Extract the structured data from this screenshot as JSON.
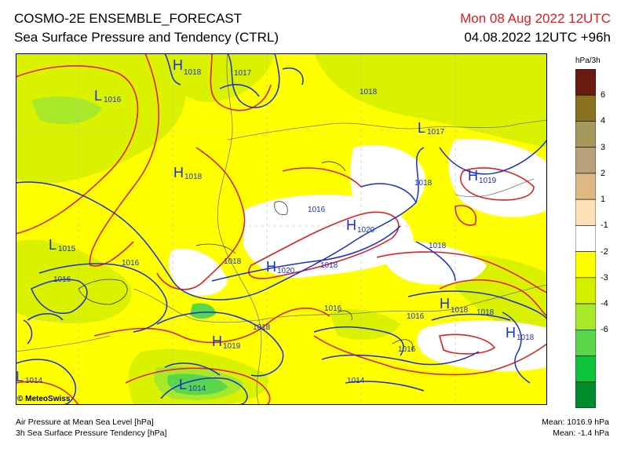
{
  "header": {
    "title": "COSMO-2E ENSEMBLE_FORECAST",
    "subtitle": "Sea Surface Pressure and Tendency (CTRL)",
    "valid_time": "Mon 08 Aug 2022 12UTC",
    "run_time": "04.08.2022 12UTC +96h"
  },
  "legend": {
    "unit": "hPa/3h",
    "ticks": [
      "6",
      "4",
      "3",
      "2",
      "1",
      "-1",
      "-2",
      "-3",
      "-4",
      "-6"
    ],
    "bands": [
      {
        "color": "#6b1a10"
      },
      {
        "color": "#8a7220"
      },
      {
        "color": "#a59a5c"
      },
      {
        "color": "#b8a07a"
      },
      {
        "color": "#ddb882"
      },
      {
        "color": "#fde0b5"
      },
      {
        "color": "#ffffff"
      },
      {
        "color": "#ffff00"
      },
      {
        "color": "#d4f000"
      },
      {
        "color": "#a8e82a"
      },
      {
        "color": "#5ad64a"
      },
      {
        "color": "#0ec43c"
      },
      {
        "color": "#008c2c"
      }
    ]
  },
  "map": {
    "lows": [
      {
        "text": "L",
        "sub": "1016"
      },
      {
        "text": "L",
        "sub": "1015"
      },
      {
        "text": "L",
        "sub": "1014"
      },
      {
        "text": "L",
        "sub": "1014"
      },
      {
        "text": "L",
        "sub": "1017"
      }
    ],
    "highs": [
      {
        "text": "H",
        "sub": "1018"
      },
      {
        "text": "H",
        "sub": "1018"
      },
      {
        "text": "H",
        "sub": "1020"
      },
      {
        "text": "H",
        "sub": "1020"
      },
      {
        "text": "H",
        "sub": "1019"
      },
      {
        "text": "H",
        "sub": "1018"
      },
      {
        "text": "H",
        "sub": "1018"
      },
      {
        "text": "H",
        "sub": "1019"
      }
    ],
    "isobar_labels": [
      "1017",
      "1018",
      "1018",
      "1016",
      "1016",
      "1016",
      "1018",
      "1018",
      "1018",
      "1016",
      "1016",
      "1016",
      "1018",
      "1014",
      "1018"
    ]
  },
  "credit": "© MeteoSwiss",
  "footer": {
    "line1": "Air Pressure at Mean Sea Level [hPa]",
    "line2": "3h Sea Surface Pressure Tendency [hPa]",
    "mean_pressure": "Mean: 1016.9 hPa",
    "mean_tendency": "Mean:   -1.4 hPa"
  },
  "colors": {
    "isobar": "#1a2fd0",
    "tendency_contour": "#e0201e",
    "valid_time_text": "#e41a1c",
    "map_base": "#ffff00"
  }
}
